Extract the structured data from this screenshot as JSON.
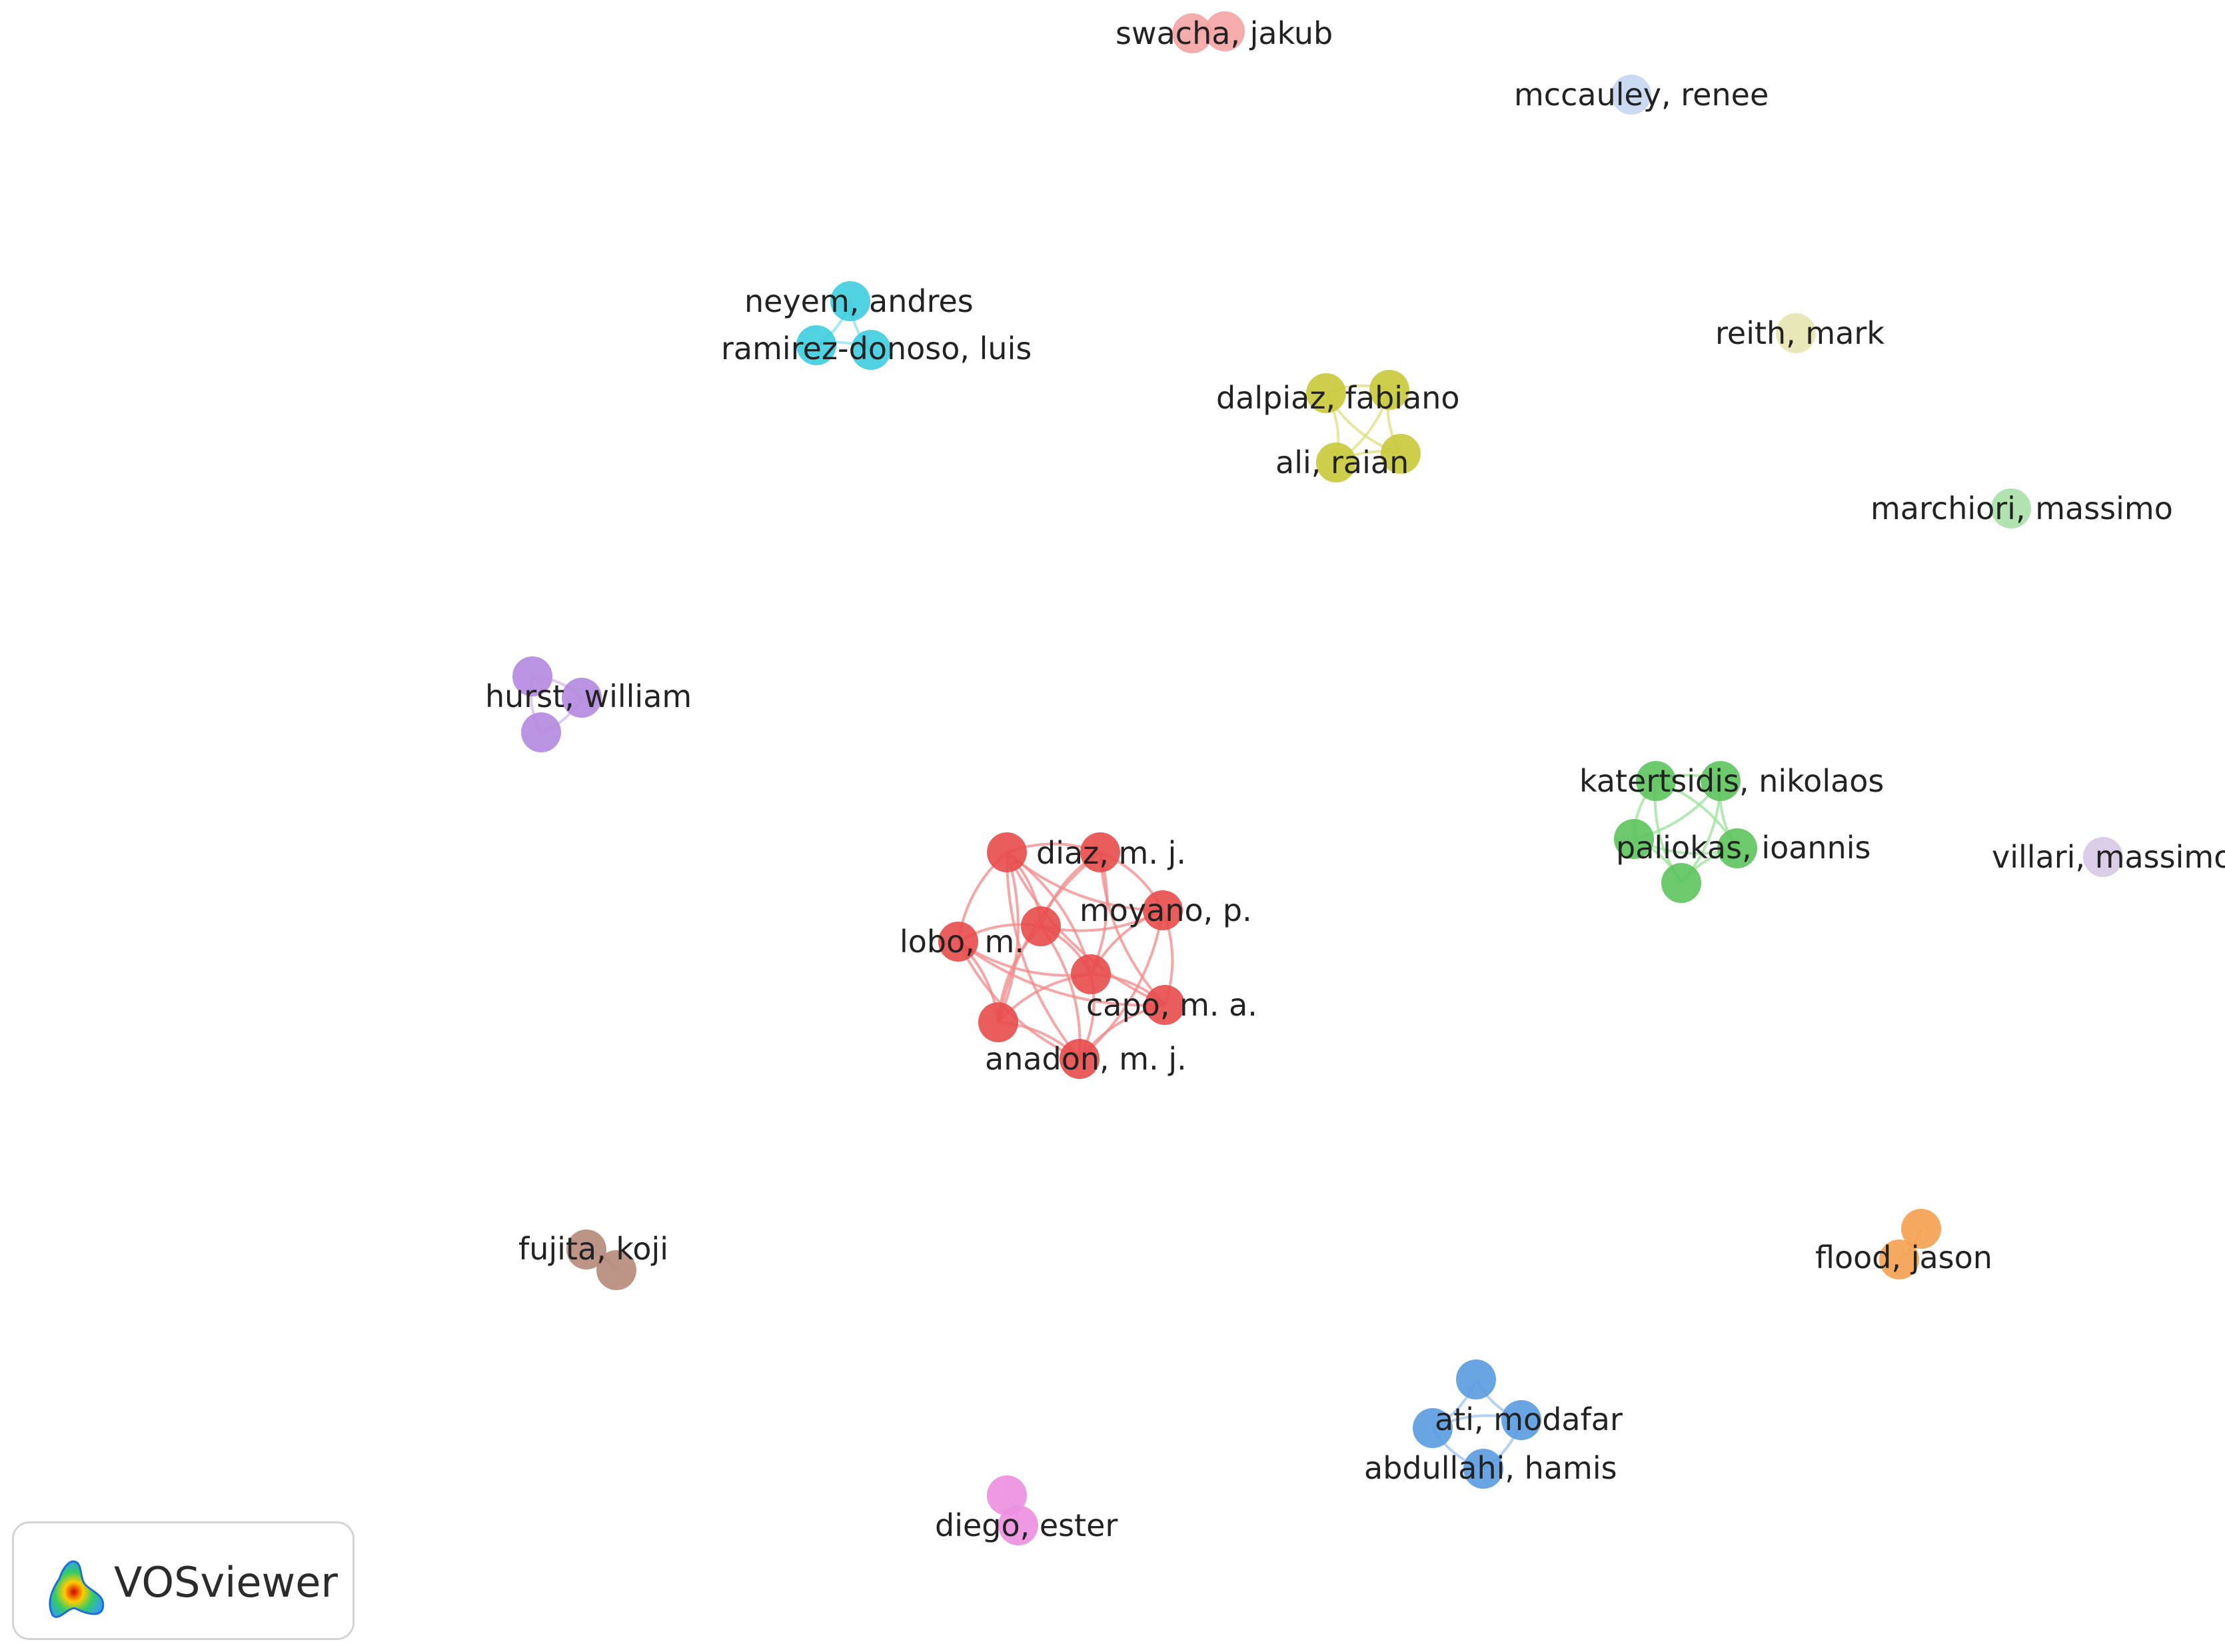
{
  "clusters": [
    {
      "id": "red",
      "color": "#e84b4b",
      "edge_color": "#f08a8a",
      "labels": [
        "diaz, m. j.",
        "moyano, p.",
        "lobo, m.",
        "capo, m. a.",
        "anadon, m. j."
      ]
    },
    {
      "id": "green",
      "color": "#5cc45c",
      "edge_color": "#9be29b",
      "labels": [
        "katertsidis, nikolaos",
        "paliokas, ioannis"
      ]
    },
    {
      "id": "blue",
      "color": "#5a9be0",
      "edge_color": "#9cc3ee",
      "labels": [
        "ati, modafar",
        "abdullahi, hamis"
      ]
    },
    {
      "id": "yellow",
      "color": "#c9c93a",
      "edge_color": "#dede80",
      "labels": [
        "dalpiaz, fabiano",
        "ali, raian"
      ]
    },
    {
      "id": "purple",
      "color": "#b487e0",
      "edge_color": "#d3b8ef",
      "labels": [
        "hurst, william"
      ]
    },
    {
      "id": "cyan",
      "color": "#3dcde0",
      "edge_color": "#88e2ee",
      "labels": [
        "neyem, andres",
        "ramirez-donoso, luis"
      ]
    },
    {
      "id": "orange",
      "color": "#f4a050",
      "edge_color": "#f7c08a",
      "labels": [
        "flood, jason"
      ]
    },
    {
      "id": "brown",
      "color": "#b5897a",
      "edge_color": "#d2b3a8",
      "labels": [
        "fujita, koji"
      ]
    },
    {
      "id": "pink",
      "color": "#ec8fe0",
      "edge_color": "#f3bcec",
      "labels": [
        "diego, ester"
      ]
    },
    {
      "id": "salmon",
      "color": "#f3a3a3",
      "edge_color": "#f7c4c4",
      "labels": [
        "swacha, jakub"
      ]
    },
    {
      "id": "lightblue",
      "color": "#c5d6ef",
      "edge_color": "#dbe6f5",
      "labels": [
        "mccauley, renee"
      ]
    },
    {
      "id": "lightyellow",
      "color": "#e4e4b0",
      "edge_color": "#eeeecc",
      "labels": [
        "reith, mark"
      ]
    },
    {
      "id": "lightgreen",
      "color": "#a8e0a8",
      "edge_color": "#c8ecc8",
      "labels": [
        "marchiori, massimo"
      ]
    },
    {
      "id": "lavender",
      "color": "#d6c8e6",
      "edge_color": "#e6dcf0",
      "labels": [
        "villari, massimo"
      ]
    }
  ],
  "logo": {
    "text": "VOSviewer",
    "icon": "vosviewer-logo-icon"
  }
}
